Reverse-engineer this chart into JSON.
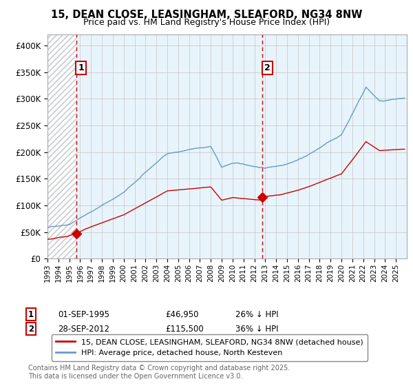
{
  "title_line1": "15, DEAN CLOSE, LEASINGHAM, SLEAFORD, NG34 8NW",
  "title_line2": "Price paid vs. HM Land Registry's House Price Index (HPI)",
  "legend_line1": "15, DEAN CLOSE, LEASINGHAM, SLEAFORD, NG34 8NW (detached house)",
  "legend_line2": "HPI: Average price, detached house, North Kesteven",
  "annotation1_label": "1",
  "annotation1_date": "01-SEP-1995",
  "annotation1_price": "£46,950",
  "annotation1_hpi": "26% ↓ HPI",
  "annotation2_label": "2",
  "annotation2_date": "28-SEP-2012",
  "annotation2_price": "£115,500",
  "annotation2_hpi": "36% ↓ HPI",
  "footer": "Contains HM Land Registry data © Crown copyright and database right 2025.\nThis data is licensed under the Open Government Licence v3.0.",
  "red_color": "#cc0000",
  "blue_color": "#6699cc",
  "blue_fill": "#ddeeff",
  "hatch_color": "#dddddd",
  "grid_color": "#cccccc",
  "ylim": [
    0,
    420000
  ],
  "yticks": [
    0,
    50000,
    100000,
    150000,
    200000,
    250000,
    300000,
    350000,
    400000
  ],
  "ytick_labels": [
    "£0",
    "£50K",
    "£100K",
    "£150K",
    "£200K",
    "£250K",
    "£300K",
    "£350K",
    "£400K"
  ],
  "sale1_x": 1995.67,
  "sale1_y": 46950,
  "sale2_x": 2012.75,
  "sale2_y": 115500,
  "xmin": 1993,
  "xmax": 2026
}
